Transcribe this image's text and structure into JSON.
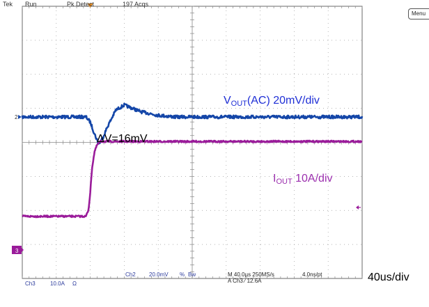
{
  "header": {
    "brand": "Tek",
    "mode": "Run",
    "acq_mode": "Pk Detect",
    "acquisitions": "197 Acqs"
  },
  "menu_label": "Menu",
  "annotations": {
    "vout_main": "V",
    "vout_sub": "OUT",
    "vout_rest": "(AC) 20mV/div",
    "dv": "ΔV=16mV",
    "iout_main": "I",
    "iout_sub": "OUT",
    "iout_rest": " 10A/div",
    "timebase": "40us/div"
  },
  "footer": {
    "ch3": "Ch3",
    "ch3_scale": "10.0A",
    "ch3_coupling": "Ω",
    "ch2": "Ch2",
    "ch2_scale": "20.0mV",
    "ch2_coupling": "% ",
    "bw": "Bw",
    "horizontal": "M 40.0µs 250MS/s",
    "sample": "4.0ns/pt",
    "trigger": "A Ch3 ⁄ 12.6A"
  },
  "markers": {
    "ch2": "2",
    "ch3": "3"
  },
  "colors": {
    "vout": "#1446a8",
    "iout": "#9a1b9a",
    "grid": "#9a9a9a",
    "footer_text": "#2b3a9c",
    "annotation_vout": "#1f2fd6",
    "annotation_iout": "#9b2fae",
    "trigger_marker": "#e98b1d"
  },
  "chart_data": {
    "type": "line",
    "title": "",
    "xlabel": "",
    "ylabel": "",
    "x_unit": "µs",
    "xlim": [
      -80,
      320
    ],
    "grid": true,
    "series": [
      {
        "name": "VOUT (AC) 20mV/div",
        "unit": "mV",
        "x": [
          -80,
          -20,
          -5,
          0,
          5,
          10,
          15,
          20,
          30,
          40,
          50,
          60,
          80,
          100,
          140,
          320
        ],
        "y": [
          0,
          0,
          0,
          -3,
          -10,
          -16,
          -12,
          -6,
          4,
          7,
          5,
          3,
          1,
          0,
          0,
          0
        ]
      },
      {
        "name": "IOUT 10A/div",
        "unit": "A",
        "x": [
          -80,
          -5,
          -2,
          0,
          2,
          5,
          8,
          12,
          20,
          320
        ],
        "y": [
          -2,
          -2,
          0,
          5,
          12,
          17,
          19,
          20,
          20,
          20
        ]
      }
    ]
  }
}
